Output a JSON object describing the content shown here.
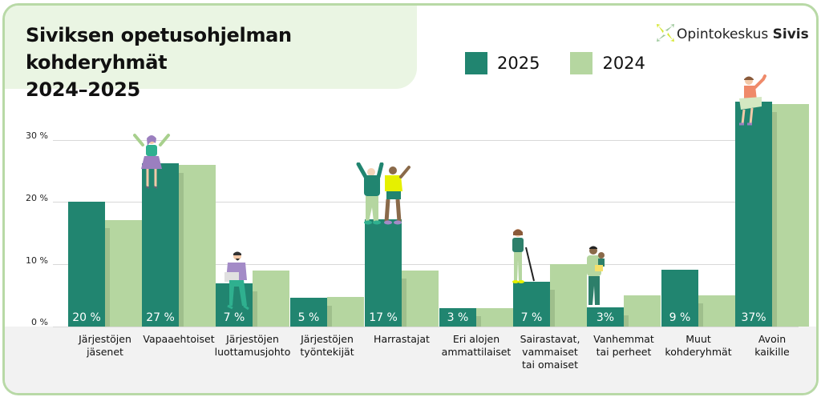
{
  "header": {
    "title_line1": "Siviksen opetusohjelman kohderyhmät",
    "title_line2": "2024–2025"
  },
  "logo": {
    "text_regular": "Opintokeskus",
    "text_bold": "Sivis",
    "icon": "flower-arrows-icon"
  },
  "legend": [
    {
      "label": "2025",
      "color": "#218570"
    },
    {
      "label": "2024",
      "color": "#b5d6a0"
    }
  ],
  "y_axis": {
    "ticks": [
      "0 %",
      "10 %",
      "20 %",
      "30 %"
    ]
  },
  "categories": [
    {
      "label_l1": "Järjestöjen",
      "label_l2": "jäsenet",
      "label_l3": "",
      "label_2025": "20 %"
    },
    {
      "label_l1": "Vapaaehtoiset",
      "label_l2": "",
      "label_l3": "",
      "label_2025": "27 %"
    },
    {
      "label_l1": "Järjestöjen",
      "label_l2": "luottamusjohto",
      "label_l3": "",
      "label_2025": "7 %"
    },
    {
      "label_l1": "Järjestöjen",
      "label_l2": "työntekijät",
      "label_l3": "",
      "label_2025": "5 %"
    },
    {
      "label_l1": "Harrastajat",
      "label_l2": "",
      "label_l3": "",
      "label_2025": "17 %"
    },
    {
      "label_l1": "Eri alojen",
      "label_l2": "ammattilaiset",
      "label_l3": "",
      "label_2025": "3 %"
    },
    {
      "label_l1": "Sairastavat,",
      "label_l2": "vammaiset",
      "label_l3": "tai omaiset",
      "label_2025": "7 %"
    },
    {
      "label_l1": "Vanhemmat",
      "label_l2": "tai perheet",
      "label_l3": "",
      "label_2025": "3%"
    },
    {
      "label_l1": "Muut",
      "label_l2": "kohderyhmät",
      "label_l3": "",
      "label_2025": "9 %"
    },
    {
      "label_l1": "Avoin",
      "label_l2": "kaikille",
      "label_l3": "",
      "label_2025": "37%"
    }
  ],
  "chart_data": {
    "type": "bar",
    "title": "Siviksen opetusohjelman kohderyhmät 2024–2025",
    "xlabel": "",
    "ylabel": "",
    "ylim": [
      0,
      37
    ],
    "y_ticks": [
      "0 %",
      "10 %",
      "20 %",
      "30 %"
    ],
    "grid": true,
    "legend_position": "top",
    "categories": [
      "Järjestöjen jäsenet",
      "Vapaaehtoiset",
      "Järjestöjen luottamusjohto",
      "Järjestöjen työntekijät",
      "Harrastajat",
      "Eri alojen ammattilaiset",
      "Sairastavat, vammaiset tai omaiset",
      "Vanhemmat tai perheet",
      "Muut kohderyhmät",
      "Avoin kaikille"
    ],
    "series": [
      {
        "name": "2025",
        "color": "#218570",
        "values": [
          20,
          27,
          7,
          5,
          17,
          3,
          7,
          3,
          9,
          37
        ],
        "data_labels": [
          "20 %",
          "27 %",
          "7 %",
          "5 %",
          "17 %",
          "3 %",
          "7 %",
          "3%",
          "9 %",
          "37%"
        ]
      },
      {
        "name": "2024",
        "color": "#b5d6a0",
        "values": [
          17,
          26,
          9,
          5,
          9,
          3,
          10,
          5,
          5,
          36
        ]
      }
    ]
  }
}
